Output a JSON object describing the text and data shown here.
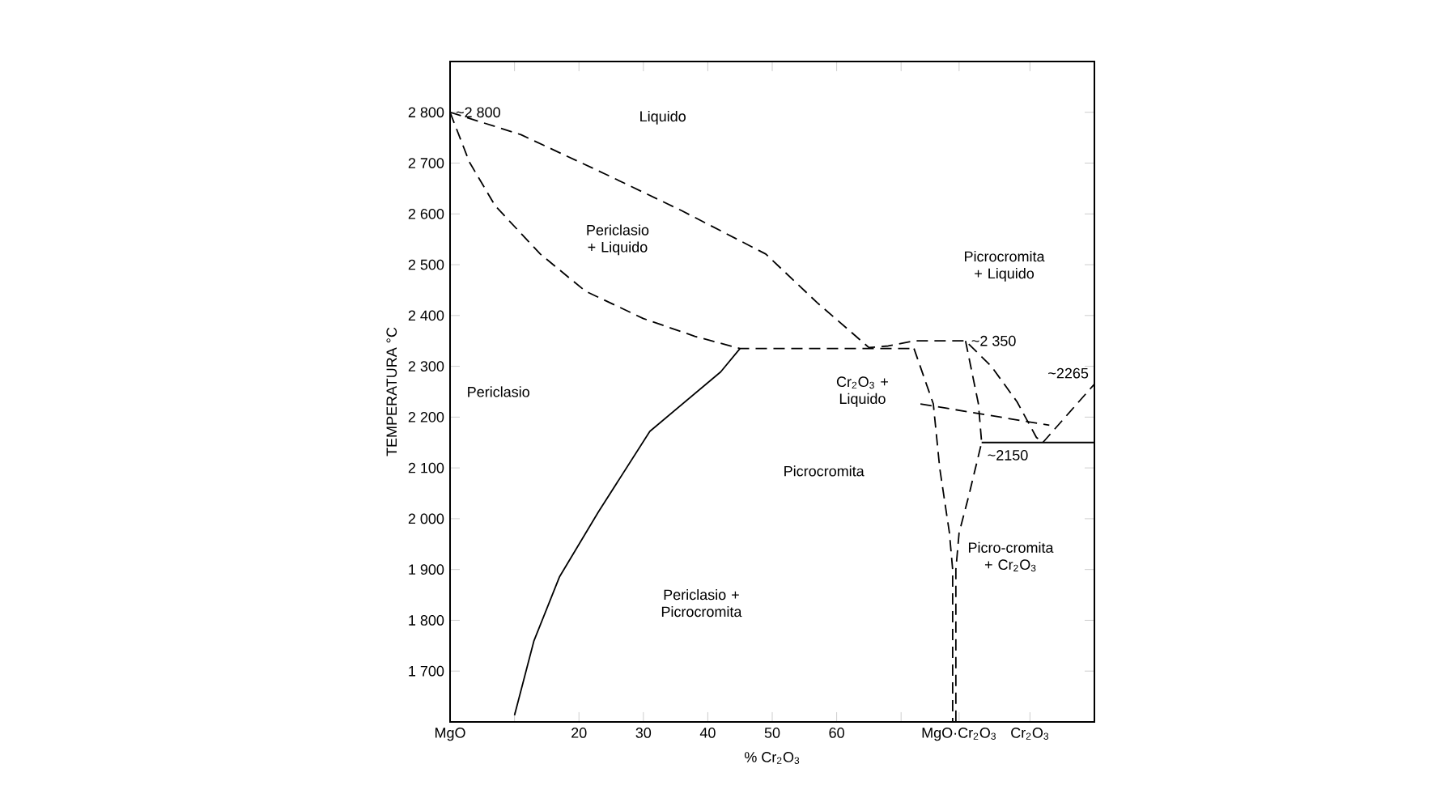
{
  "chart_data": {
    "type": "line",
    "xlabel": "% Cr$_{2}$O$_{3}$",
    "ylabel": "TEMPERATURA °C",
    "xlim": [
      0,
      100
    ],
    "ylim": [
      1600,
      2900
    ],
    "xticks": [
      {
        "value": 0,
        "label": "MgO"
      },
      {
        "value": 10,
        "label": null
      },
      20,
      30,
      40,
      50,
      60,
      {
        "value": 70,
        "label": null
      },
      {
        "value": 79,
        "label": "MgO·Cr$_{2}$O$_{3}$"
      },
      {
        "value": 90,
        "label": "Cr$_{2}$O$_{3}$"
      }
    ],
    "yticks": [
      {
        "value": 1700,
        "label": "1 700"
      },
      {
        "value": 1800,
        "label": "1 800"
      },
      {
        "value": 1900,
        "label": "1 900"
      },
      {
        "value": 2000,
        "label": "2 000"
      },
      {
        "value": 2100,
        "label": "2 100"
      },
      {
        "value": 2200,
        "label": "2 200"
      },
      {
        "value": 2300,
        "label": "2 300"
      },
      {
        "value": 2400,
        "label": "2 400"
      },
      {
        "value": 2500,
        "label": "2 500"
      },
      {
        "value": 2600,
        "label": "2 600"
      },
      {
        "value": 2700,
        "label": "2 700"
      },
      {
        "value": 2800,
        "label": "2 800"
      }
    ],
    "series": [
      {
        "color": "#000000",
        "line_style": "dashed",
        "x": [
          0,
          11,
          24,
          36,
          49,
          57,
          65,
          68,
          72,
          76,
          80,
          84,
          88,
          91,
          92
        ],
        "values": [
          2800,
          2756,
          2679,
          2606,
          2521,
          2425,
          2337,
          2340,
          2350,
          2350,
          2350,
          2300,
          2230,
          2160,
          2150
        ]
      },
      {
        "color": "#000000",
        "line_style": "dashed",
        "x": [
          0,
          3,
          7,
          14,
          21,
          30,
          38,
          45,
          65,
          72
        ],
        "values": [
          2800,
          2702,
          2616,
          2521,
          2448,
          2394,
          2359,
          2335,
          2335,
          2335
        ]
      },
      {
        "color": "#000000",
        "line_style": "solid",
        "x": [
          45,
          42,
          31,
          23,
          17,
          13,
          10
        ],
        "values": [
          2335,
          2289,
          2172,
          2013,
          1886,
          1759,
          1613
        ]
      },
      {
        "color": "#000000",
        "line_style": "dashed",
        "x": [
          72,
          75,
          76,
          77.5,
          78,
          78
        ],
        "values": [
          2335,
          2226,
          2099,
          1972,
          1900,
          1600
        ]
      },
      {
        "color": "#000000",
        "line_style": "dashed",
        "x": [
          80,
          82,
          82.5,
          80.5,
          79,
          78.5,
          78.5
        ],
        "values": [
          2350,
          2226,
          2150,
          2045,
          1972,
          1900,
          1600
        ]
      },
      {
        "color": "#000000",
        "line_style": "solid",
        "x": [
          82.5,
          100
        ],
        "values": [
          2150,
          2150
        ]
      },
      {
        "color": "#000000",
        "line_style": "dashed",
        "x": [
          92,
          100
        ],
        "values": [
          2150,
          2265
        ]
      },
      {
        "color": "#000000",
        "line_style": "dashed",
        "x": [
          73,
          93
        ],
        "values": [
          2226,
          2184
        ]
      }
    ],
    "annotations": [
      {
        "text": "~2 800",
        "x": 0,
        "y": 2800
      },
      "Liquido",
      "Periclasio + Liquido",
      "Periclasio",
      "Cr$_{2}$O$_{3}$ + Liquido",
      "Picrocromita",
      "Periclasio + Picrocromita",
      "Picrocromita + Liquido",
      {
        "text": "~2 350",
        "x": 80,
        "y": 2350
      },
      {
        "text": "~2265",
        "x": 100,
        "y": 2265
      },
      {
        "text": "~2150",
        "x": 82.5,
        "y": 2125
      },
      "Picro-cromita + Cr$_{2}$O$_{3}$"
    ]
  }
}
